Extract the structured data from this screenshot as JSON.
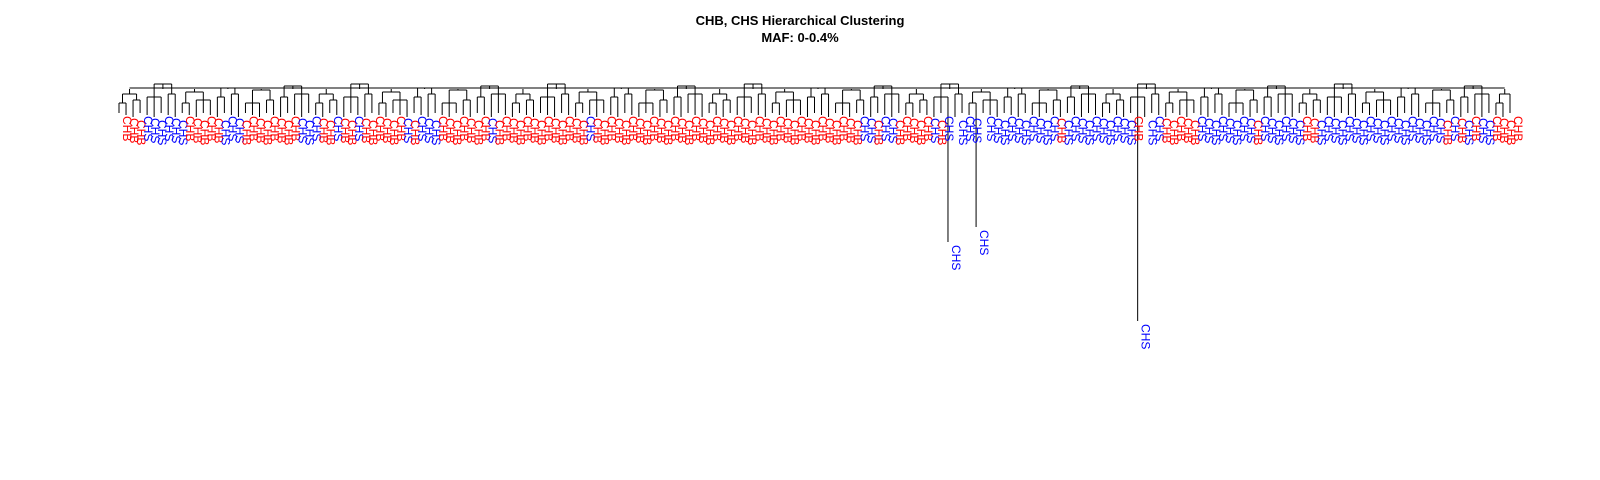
{
  "chart_data": {
    "type": "dendrogram",
    "title": "CHB, CHS Hierarchical Clustering",
    "subtitle": "MAF: 0-0.4%",
    "xlabel": "",
    "ylabel": "",
    "grid": false,
    "colors": {
      "CHB": "#ff0000",
      "CHS": "#0000ff",
      "lines": "#000000"
    },
    "leaves": [
      "CHB",
      "CHB",
      "CHB",
      "CHS",
      "CHS",
      "CHS",
      "CHS",
      "CHS",
      "CHS",
      "CHB",
      "CHB",
      "CHB",
      "CHB",
      "CHB",
      "CHS",
      "CHS",
      "CHS",
      "CHB",
      "CHB",
      "CHB",
      "CHB",
      "CHB",
      "CHB",
      "CHB",
      "CHB",
      "CHS",
      "CHS",
      "CHS",
      "CHB",
      "CHB",
      "CHS",
      "CHB",
      "CHB",
      "CHS",
      "CHB",
      "CHB",
      "CHB",
      "CHB",
      "CHB",
      "CHB",
      "CHS",
      "CHB",
      "CHS",
      "CHS",
      "CHS",
      "CHB",
      "CHB",
      "CHB",
      "CHB",
      "CHB",
      "CHB",
      "CHB",
      "CHS",
      "CHB",
      "CHB",
      "CHB",
      "CHB",
      "CHB",
      "CHB",
      "CHB",
      "CHB",
      "CHB",
      "CHB",
      "CHB",
      "CHB",
      "CHB",
      "CHS",
      "CHB",
      "CHB",
      "CHB",
      "CHB",
      "CHB",
      "CHB",
      "CHB",
      "CHB",
      "CHB",
      "CHB",
      "CHB",
      "CHB",
      "CHB",
      "CHB",
      "CHB",
      "CHB",
      "CHB",
      "CHB",
      "CHB",
      "CHB",
      "CHB",
      "CHB",
      "CHB",
      "CHB",
      "CHB",
      "CHB",
      "CHB",
      "CHB",
      "CHB",
      "CHB",
      "CHB",
      "CHB",
      "CHB",
      "CHB",
      "CHB",
      "CHB",
      "CHB",
      "CHB",
      "CHS",
      "CHS",
      "CHB",
      "CHS",
      "CHS",
      "CHB",
      "CHB",
      "CHB",
      "CHB",
      "CHB",
      "CHS",
      "CHB",
      "CHS",
      "CHS",
      "CHS",
      "CHS",
      "CHS",
      "CHS",
      "CHS",
      "CHS",
      "CHS",
      "CHS",
      "CHS",
      "CHS",
      "CHS",
      "CHS",
      "CHS",
      "CHS",
      "CHB",
      "CHS",
      "CHS",
      "CHS",
      "CHS",
      "CHS",
      "CHS",
      "CHS",
      "CHS",
      "CHS",
      "CHS",
      "CHB",
      "CHS",
      "CHS",
      "CHS",
      "CHB",
      "CHB",
      "CHB",
      "CHB",
      "CHB",
      "CHS",
      "CHS",
      "CHS",
      "CHS",
      "CHS",
      "CHS",
      "CHS",
      "CHS",
      "CHB",
      "CHS",
      "CHS",
      "CHS",
      "CHS",
      "CHS",
      "CHS",
      "CHB",
      "CHB",
      "CHS",
      "CHS",
      "CHS",
      "CHS",
      "CHS",
      "CHS",
      "CHS",
      "CHS",
      "CHS",
      "CHS",
      "CHS",
      "CHS",
      "CHS",
      "CHS",
      "CHS",
      "CHS",
      "CHS",
      "CHS",
      "CHB",
      "CHS",
      "CHB",
      "CHS",
      "CHB",
      "CHS",
      "CHS",
      "CHB",
      "CHB",
      "CHB",
      "CHB"
    ]
  }
}
